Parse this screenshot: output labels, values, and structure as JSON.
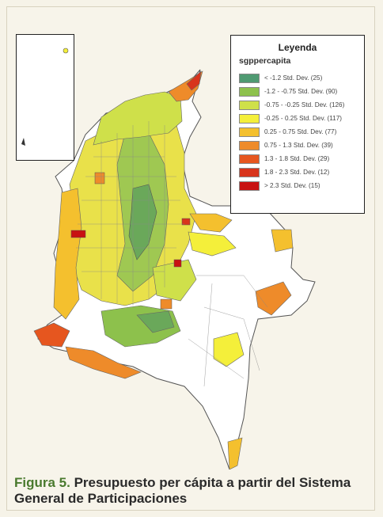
{
  "legend": {
    "title": "Leyenda",
    "subtitle": "sgppercapita",
    "entries": [
      {
        "label": "< -1.2 Std. Dev. (25)",
        "color": "#4f9a72"
      },
      {
        "label": "-1.2 - -0.75 Std. Dev. (90)",
        "color": "#8dc14c"
      },
      {
        "label": "-0.75 - -0.25 Std. Dev. (126)",
        "color": "#cfe04a"
      },
      {
        "label": "-0.25 - 0.25 Std. Dev. (117)",
        "color": "#f4ef3a"
      },
      {
        "label": "0.25 - 0.75 Std. Dev. (77)",
        "color": "#f4c02e"
      },
      {
        "label": "0.75 - 1.3 Std. Dev. (39)",
        "color": "#ee8b2a"
      },
      {
        "label": "1.3 - 1.8 Std. Dev. (29)",
        "color": "#e6561f"
      },
      {
        "label": "1.8 - 2.3 Std. Dev. (12)",
        "color": "#d8341c"
      },
      {
        "label": "> 2.3 Std. Dev. (15)",
        "color": "#c81212"
      }
    ]
  },
  "caption": {
    "label": "Figura 5.",
    "text": " Presupuesto per cápita a partir del Sistema General de Participaciones"
  }
}
